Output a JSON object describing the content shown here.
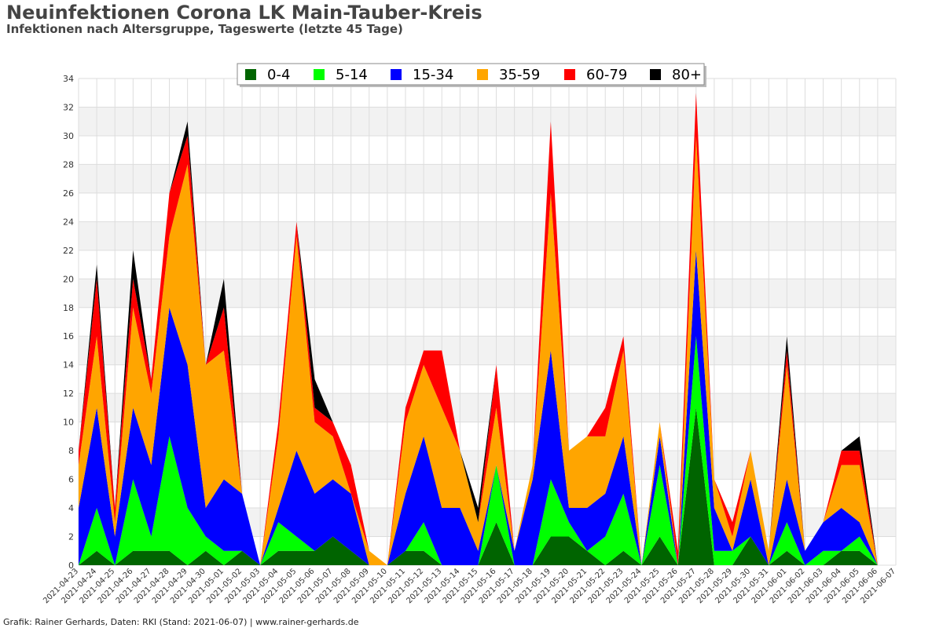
{
  "title": "Neuinfektionen Corona LK Main-Tauber-Kreis",
  "subtitle": "Infektionen nach Altersgruppe, Tageswerte (letzte 45 Tage)",
  "footer": "Grafik: Rainer Gerhards, Daten: RKI (Stand: 2021-06-07) | www.rainer-gerhards.de",
  "chart_data": {
    "type": "area",
    "stacked": true,
    "ylim": [
      0,
      34
    ],
    "yticks": [
      0,
      2,
      4,
      6,
      8,
      10,
      12,
      14,
      16,
      18,
      20,
      22,
      24,
      26,
      28,
      30,
      32,
      34
    ],
    "grid": true,
    "legend_position": "top-center",
    "categories": [
      "2021-04-23",
      "2021-04-24",
      "2021-04-25",
      "2021-04-26",
      "2021-04-27",
      "2021-04-28",
      "2021-04-29",
      "2021-04-30",
      "2021-05-01",
      "2021-05-02",
      "2021-05-03",
      "2021-05-04",
      "2021-05-05",
      "2021-05-06",
      "2021-05-07",
      "2021-05-08",
      "2021-05-09",
      "2021-05-10",
      "2021-05-11",
      "2021-05-12",
      "2021-05-13",
      "2021-05-14",
      "2021-05-15",
      "2021-05-16",
      "2021-05-17",
      "2021-05-18",
      "2021-05-19",
      "2021-05-20",
      "2021-05-21",
      "2021-05-22",
      "2021-05-23",
      "2021-05-24",
      "2021-05-25",
      "2021-05-26",
      "2021-05-27",
      "2021-05-28",
      "2021-05-29",
      "2021-05-30",
      "2021-05-31",
      "2021-06-01",
      "2021-06-02",
      "2021-06-03",
      "2021-06-04",
      "2021-06-05",
      "2021-06-06",
      "2021-06-07"
    ],
    "series": [
      {
        "name": "0-4",
        "color": "#006400",
        "values": [
          0,
          1,
          0,
          1,
          1,
          1,
          0,
          1,
          0,
          1,
          0,
          1,
          1,
          1,
          2,
          1,
          0,
          0,
          1,
          1,
          0,
          0,
          0,
          3,
          0,
          0,
          2,
          2,
          1,
          0,
          1,
          0,
          2,
          0,
          11,
          0,
          0,
          2,
          0,
          1,
          0,
          0,
          1,
          1,
          0,
          0
        ]
      },
      {
        "name": "5-14",
        "color": "#00ff00",
        "values": [
          0,
          3,
          0,
          5,
          1,
          8,
          4,
          1,
          1,
          0,
          0,
          2,
          1,
          0,
          0,
          0,
          0,
          0,
          0,
          2,
          0,
          0,
          0,
          4,
          0,
          0,
          4,
          1,
          0,
          2,
          4,
          0,
          5,
          0,
          5,
          1,
          1,
          0,
          0,
          2,
          0,
          1,
          0,
          1,
          0,
          0
        ]
      },
      {
        "name": "15-34",
        "color": "#0000ff",
        "values": [
          4,
          7,
          2,
          5,
          5,
          9,
          10,
          2,
          5,
          4,
          0,
          1,
          6,
          4,
          4,
          4,
          0,
          0,
          4,
          6,
          4,
          4,
          1,
          0,
          1,
          6,
          9,
          1,
          3,
          3,
          4,
          0,
          2,
          0,
          6,
          3,
          0,
          4,
          0,
          3,
          1,
          2,
          3,
          1,
          0,
          0
        ]
      },
      {
        "name": "35-59",
        "color": "#ffa500",
        "values": [
          3,
          5,
          1,
          7,
          5,
          5,
          14,
          10,
          9,
          0,
          0,
          5,
          15,
          5,
          3,
          0,
          1,
          0,
          5,
          5,
          7,
          4,
          2,
          4,
          0,
          1,
          11,
          4,
          5,
          4,
          6,
          0,
          1,
          0,
          8,
          2,
          1,
          2,
          1,
          8,
          0,
          0,
          3,
          4,
          0,
          0
        ]
      },
      {
        "name": "60-79",
        "color": "#ff0000",
        "values": [
          1,
          4,
          1,
          2,
          1,
          3,
          2,
          0,
          3,
          0,
          0,
          1,
          1,
          1,
          1,
          2,
          0,
          0,
          1,
          1,
          4,
          0,
          0,
          3,
          0,
          0,
          5,
          0,
          0,
          2,
          1,
          0,
          0,
          1,
          3,
          0,
          1,
          0,
          0,
          1,
          0,
          0,
          1,
          1,
          0,
          0
        ]
      },
      {
        "name": "80+",
        "color": "#000000",
        "values": [
          0,
          1,
          0,
          2,
          0,
          0,
          1,
          0,
          2,
          0,
          0,
          0,
          0,
          2,
          0,
          0,
          0,
          0,
          0,
          0,
          0,
          0,
          1,
          0,
          0,
          0,
          0,
          0,
          0,
          0,
          0,
          0,
          0,
          0,
          0,
          0,
          0,
          0,
          0,
          1,
          0,
          0,
          0,
          1,
          0,
          0
        ]
      }
    ]
  }
}
